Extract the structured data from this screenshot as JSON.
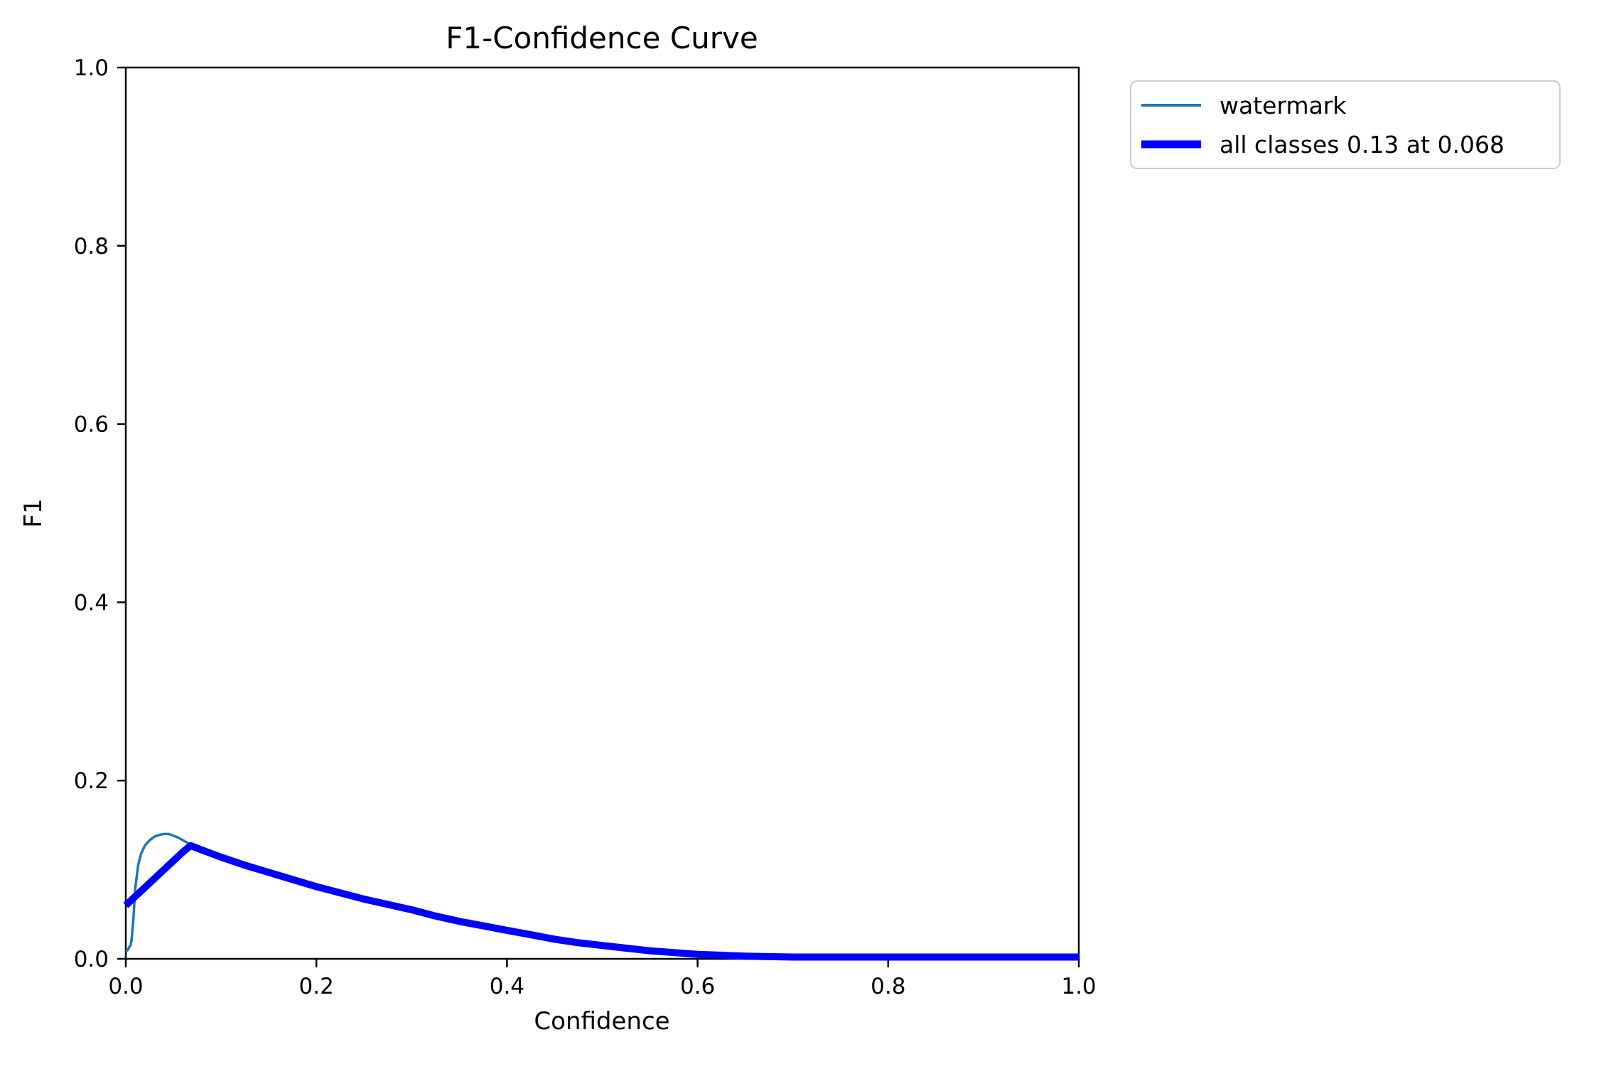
{
  "figure": {
    "background": "#ffffff",
    "axis_color": "#000000",
    "legend_border_color": "#cccccc"
  },
  "chart_data": {
    "type": "line",
    "title": "F1-Confidence Curve",
    "xlabel": "Confidence",
    "ylabel": "F1",
    "xlim": [
      0.0,
      1.0
    ],
    "ylim": [
      0.0,
      1.0
    ],
    "grid": false,
    "x_ticks": {
      "values": [
        0.0,
        0.2,
        0.4,
        0.6,
        0.8,
        1.0
      ],
      "labels": [
        "0.0",
        "0.2",
        "0.4",
        "0.6",
        "0.8",
        "1.0"
      ]
    },
    "y_ticks": {
      "values": [
        0.0,
        0.2,
        0.4,
        0.6,
        0.8,
        1.0
      ],
      "labels": [
        "0.0",
        "0.2",
        "0.4",
        "0.6",
        "0.8",
        "1.0"
      ]
    },
    "legend": {
      "position": "outside-upper-right",
      "entries": [
        "watermark",
        "all classes 0.13 at 0.068"
      ]
    },
    "best_f1_label": "all classes 0.13 at 0.068",
    "series": [
      {
        "name": "watermark",
        "color": "#1f77b4",
        "line_width": 3.5,
        "x": [
          0.0,
          0.002,
          0.004,
          0.005,
          0.006,
          0.008,
          0.01,
          0.013,
          0.016,
          0.02,
          0.025,
          0.03,
          0.035,
          0.04,
          0.045,
          0.05,
          0.055,
          0.06,
          0.065,
          0.07,
          0.075,
          0.1,
          0.125,
          0.15,
          0.175,
          0.2,
          0.25,
          0.3,
          0.35,
          0.4,
          0.45,
          0.5,
          0.55,
          0.6,
          0.65,
          0.7,
          0.8,
          0.9,
          1.0
        ],
        "y": [
          0.008,
          0.01,
          0.014,
          0.015,
          0.02,
          0.045,
          0.08,
          0.105,
          0.118,
          0.127,
          0.133,
          0.137,
          0.139,
          0.14,
          0.14,
          0.138,
          0.136,
          0.133,
          0.13,
          0.127,
          0.125,
          0.114,
          0.105,
          0.097,
          0.089,
          0.081,
          0.067,
          0.055,
          0.042,
          0.032,
          0.022,
          0.015,
          0.009,
          0.005,
          0.003,
          0.002,
          0.002,
          0.002,
          0.002
        ]
      },
      {
        "name": "all classes 0.13 at 0.068",
        "color": "#0000ff",
        "line_width": 10,
        "x": [
          0.0,
          0.01,
          0.02,
          0.03,
          0.04,
          0.05,
          0.06,
          0.068,
          0.08,
          0.1,
          0.125,
          0.15,
          0.175,
          0.2,
          0.225,
          0.25,
          0.275,
          0.3,
          0.325,
          0.35,
          0.375,
          0.4,
          0.425,
          0.45,
          0.475,
          0.5,
          0.525,
          0.55,
          0.575,
          0.6,
          0.65,
          0.7,
          0.75,
          0.8,
          0.85,
          0.9,
          0.95,
          1.0
        ],
        "y": [
          0.06,
          0.07,
          0.08,
          0.09,
          0.1,
          0.11,
          0.12,
          0.127,
          0.122,
          0.114,
          0.105,
          0.097,
          0.089,
          0.081,
          0.074,
          0.067,
          0.061,
          0.055,
          0.048,
          0.042,
          0.037,
          0.032,
          0.027,
          0.022,
          0.018,
          0.015,
          0.012,
          0.009,
          0.007,
          0.005,
          0.003,
          0.002,
          0.002,
          0.002,
          0.002,
          0.002,
          0.002,
          0.002
        ]
      }
    ]
  }
}
